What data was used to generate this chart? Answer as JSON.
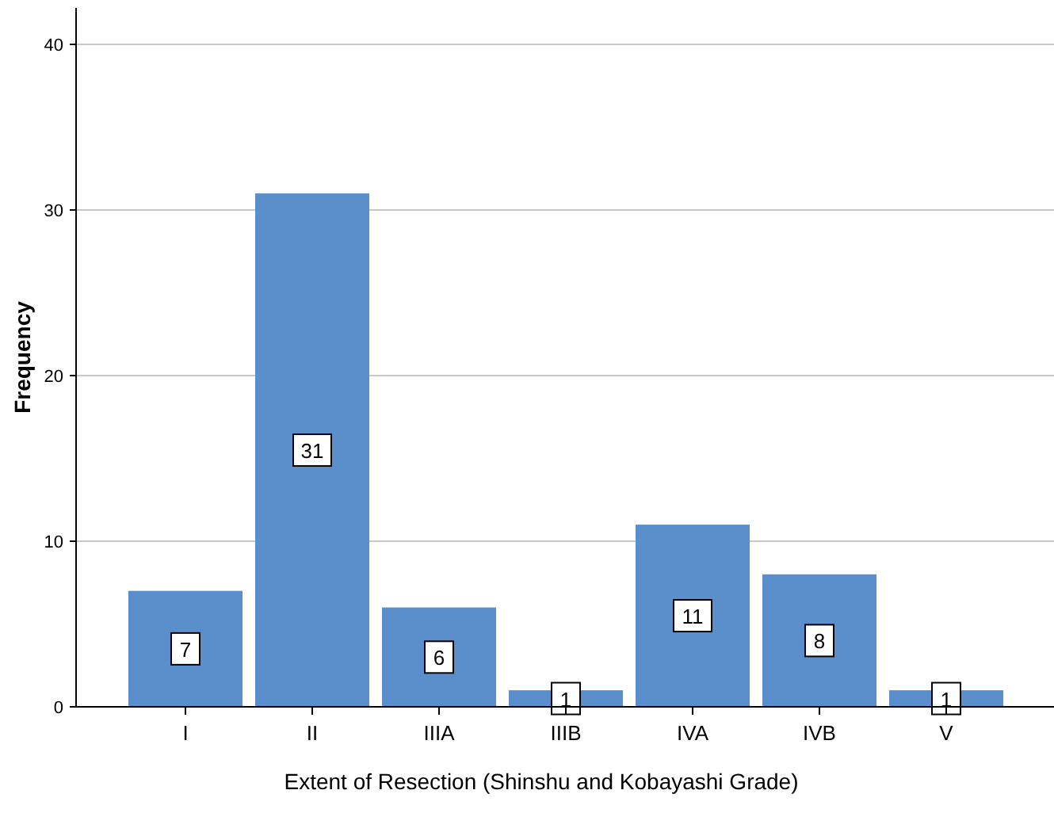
{
  "chart_data": {
    "type": "bar",
    "xlabel": "Extent of Resection (Shinshu and Kobayashi Grade)",
    "ylabel": "Frequency",
    "categories": [
      "I",
      "II",
      "IIIA",
      "IIIB",
      "IVA",
      "IVB",
      "V"
    ],
    "values": [
      7,
      31,
      6,
      1,
      11,
      8,
      1
    ],
    "color": "#5b8fcc",
    "ylim": [
      0,
      42.2
    ],
    "yticks": [
      0,
      10,
      20,
      30,
      40
    ],
    "grid": "y",
    "data_labels": true
  }
}
